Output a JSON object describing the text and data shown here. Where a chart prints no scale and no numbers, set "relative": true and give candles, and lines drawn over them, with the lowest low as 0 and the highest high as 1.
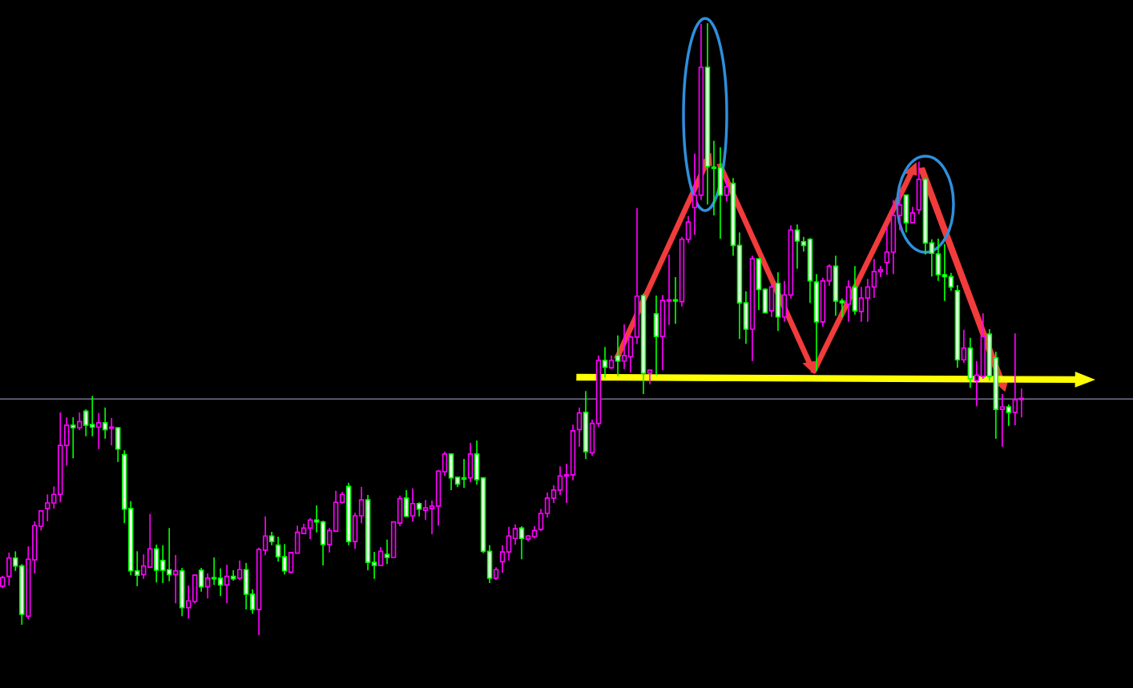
{
  "chart_data": {
    "type": "candlestick",
    "relative": true,
    "categories": [
      null,
      null,
      null,
      null,
      null,
      null,
      null,
      null,
      null,
      null,
      null,
      null,
      null,
      null,
      null,
      null,
      null,
      null,
      null,
      null,
      null,
      null,
      null,
      null,
      null,
      null,
      null,
      null,
      null,
      null,
      null,
      null,
      null,
      null,
      null,
      null,
      null,
      null,
      null,
      null,
      null,
      null,
      null,
      null,
      null,
      null,
      null,
      null,
      null,
      null,
      null,
      null,
      null,
      null,
      null,
      null,
      null,
      null,
      null,
      null,
      null,
      null,
      null,
      null,
      null,
      null,
      null,
      null,
      null,
      null,
      null,
      null,
      null,
      null,
      null,
      null,
      null,
      null,
      null,
      null,
      null,
      null,
      null,
      null,
      null,
      null,
      null,
      null,
      null,
      null,
      null,
      null,
      null,
      null,
      null,
      null,
      null,
      null,
      null,
      null,
      null,
      null,
      null,
      null,
      null,
      null,
      null,
      null,
      null,
      null,
      null,
      null,
      null,
      null,
      null,
      null,
      null,
      null,
      null,
      null,
      null,
      null,
      null,
      null,
      null,
      null,
      null,
      null,
      null,
      null,
      null,
      null,
      null,
      null,
      null,
      null,
      null,
      null,
      null,
      null,
      null,
      null,
      null,
      null,
      null,
      null,
      null,
      null,
      null,
      null,
      null,
      null,
      null,
      null,
      null,
      null,
      null,
      null,
      null,
      null
    ],
    "ohlc": [
      [
        0.08,
        0.097,
        0.077,
        0.094
      ],
      [
        0.096,
        0.135,
        0.081,
        0.126
      ],
      [
        0.126,
        0.137,
        0.105,
        0.113
      ],
      [
        0.113,
        0.116,
        0.017,
        0.034
      ],
      [
        0.031,
        0.145,
        0.026,
        0.124
      ],
      [
        0.123,
        0.186,
        0.101,
        0.179
      ],
      [
        0.178,
        0.203,
        0.171,
        0.203
      ],
      [
        0.207,
        0.23,
        0.186,
        0.216
      ],
      [
        0.216,
        0.243,
        0.207,
        0.23
      ],
      [
        0.23,
        0.364,
        0.217,
        0.31
      ],
      [
        0.31,
        0.356,
        0.277,
        0.343
      ],
      [
        0.343,
        0.356,
        0.289,
        0.339
      ],
      [
        0.339,
        0.364,
        0.335,
        0.349
      ],
      [
        0.366,
        0.369,
        0.325,
        0.343
      ],
      [
        0.344,
        0.391,
        0.325,
        0.34
      ],
      [
        0.34,
        0.363,
        0.304,
        0.347
      ],
      [
        0.347,
        0.372,
        0.321,
        0.336
      ],
      [
        0.338,
        0.355,
        0.31,
        0.339
      ],
      [
        0.339,
        0.339,
        0.283,
        0.304
      ],
      [
        0.295,
        0.302,
        0.183,
        0.206
      ],
      [
        0.207,
        0.219,
        0.098,
        0.105
      ],
      [
        0.105,
        0.137,
        0.08,
        0.098
      ],
      [
        0.099,
        0.132,
        0.092,
        0.113
      ],
      [
        0.111,
        0.198,
        0.11,
        0.141
      ],
      [
        0.141,
        0.148,
        0.086,
        0.106
      ],
      [
        0.122,
        0.147,
        0.085,
        0.106
      ],
      [
        0.107,
        0.175,
        0.088,
        0.099
      ],
      [
        0.099,
        0.131,
        0.052,
        0.105
      ],
      [
        0.105,
        0.11,
        0.031,
        0.045
      ],
      [
        0.045,
        0.081,
        0.027,
        0.056
      ],
      [
        0.055,
        0.099,
        0.052,
        0.098
      ],
      [
        0.106,
        0.11,
        0.071,
        0.079
      ],
      [
        0.079,
        0.101,
        0.06,
        0.093
      ],
      [
        0.093,
        0.127,
        0.082,
        0.092
      ],
      [
        0.093,
        0.109,
        0.064,
        0.082
      ],
      [
        0.082,
        0.115,
        0.052,
        0.096
      ],
      [
        0.096,
        0.106,
        0.089,
        0.092
      ],
      [
        0.093,
        0.122,
        0.09,
        0.107
      ],
      [
        0.107,
        0.118,
        0.042,
        0.067
      ],
      [
        0.067,
        0.075,
        0.035,
        0.042
      ],
      [
        0.042,
        0.143,
        0.0,
        0.14
      ],
      [
        0.139,
        0.194,
        0.131,
        0.162
      ],
      [
        0.162,
        0.169,
        0.147,
        0.153
      ],
      [
        0.147,
        0.161,
        0.12,
        0.128
      ],
      [
        0.128,
        0.149,
        0.099,
        0.105
      ],
      [
        0.103,
        0.135,
        0.101,
        0.135
      ],
      [
        0.134,
        0.179,
        0.134,
        0.168
      ],
      [
        0.166,
        0.182,
        0.165,
        0.175
      ],
      [
        0.175,
        0.191,
        0.157,
        0.188
      ],
      [
        0.188,
        0.212,
        0.168,
        0.185
      ],
      [
        0.185,
        0.187,
        0.114,
        0.148
      ],
      [
        0.148,
        0.175,
        0.135,
        0.171
      ],
      [
        0.17,
        0.236,
        0.17,
        0.217
      ],
      [
        0.217,
        0.234,
        0.215,
        0.23
      ],
      [
        0.243,
        0.249,
        0.147,
        0.153
      ],
      [
        0.153,
        0.2,
        0.141,
        0.195
      ],
      [
        0.195,
        0.242,
        0.183,
        0.221
      ],
      [
        0.221,
        0.229,
        0.106,
        0.119
      ],
      [
        0.119,
        0.136,
        0.092,
        0.114
      ],
      [
        0.114,
        0.144,
        0.114,
        0.137
      ],
      [
        0.132,
        0.156,
        0.116,
        0.127
      ],
      [
        0.127,
        0.186,
        0.127,
        0.185
      ],
      [
        0.183,
        0.228,
        0.178,
        0.223
      ],
      [
        0.224,
        0.237,
        0.194,
        0.194
      ],
      [
        0.195,
        0.24,
        0.186,
        0.215
      ],
      [
        0.215,
        0.217,
        0.194,
        0.206
      ],
      [
        0.204,
        0.221,
        0.188,
        0.208
      ],
      [
        0.207,
        0.22,
        0.165,
        0.211
      ],
      [
        0.211,
        0.27,
        0.179,
        0.268
      ],
      [
        0.267,
        0.3,
        0.26,
        0.296
      ],
      [
        0.296,
        0.296,
        0.237,
        0.257
      ],
      [
        0.258,
        0.259,
        0.242,
        0.247
      ],
      [
        0.257,
        0.288,
        0.241,
        0.255
      ],
      [
        0.257,
        0.314,
        0.25,
        0.296
      ],
      [
        0.296,
        0.318,
        0.246,
        0.254
      ],
      [
        0.257,
        0.257,
        0.134,
        0.137
      ],
      [
        0.137,
        0.147,
        0.085,
        0.093
      ],
      [
        0.093,
        0.111,
        0.09,
        0.107
      ],
      [
        0.12,
        0.147,
        0.102,
        0.136
      ],
      [
        0.136,
        0.177,
        0.122,
        0.162
      ],
      [
        0.158,
        0.181,
        0.148,
        0.174
      ],
      [
        0.175,
        0.178,
        0.124,
        0.158
      ],
      [
        0.157,
        0.164,
        0.153,
        0.162
      ],
      [
        0.161,
        0.178,
        0.158,
        0.171
      ],
      [
        0.173,
        0.206,
        0.17,
        0.199
      ],
      [
        0.199,
        0.233,
        0.192,
        0.224
      ],
      [
        0.224,
        0.245,
        0.216,
        0.237
      ],
      [
        0.237,
        0.276,
        0.229,
        0.26
      ],
      [
        0.26,
        0.28,
        0.216,
        0.262
      ],
      [
        0.262,
        0.344,
        0.253,
        0.334
      ],
      [
        0.336,
        0.372,
        0.308,
        0.363
      ],
      [
        0.364,
        0.399,
        0.288,
        0.3
      ],
      [
        0.298,
        0.352,
        0.293,
        0.346
      ],
      [
        0.346,
        0.457,
        0.34,
        0.449
      ],
      [
        0.449,
        0.471,
        0.421,
        0.438
      ],
      [
        0.437,
        0.457,
        0.435,
        0.449
      ],
      [
        0.457,
        0.49,
        0.423,
        0.448
      ],
      [
        0.448,
        0.508,
        0.435,
        0.457
      ],
      [
        0.455,
        0.49,
        0.429,
        0.487
      ],
      [
        0.487,
        0.698,
        0.476,
        0.554
      ],
      [
        0.555,
        0.558,
        0.394,
        0.428
      ],
      [
        0.428,
        0.433,
        0.41,
        0.433
      ],
      [
        0.525,
        0.555,
        0.425,
        0.488
      ],
      [
        0.488,
        0.556,
        0.433,
        0.547
      ],
      [
        0.546,
        0.622,
        0.507,
        0.547
      ],
      [
        0.548,
        0.585,
        0.509,
        0.546
      ],
      [
        0.545,
        0.651,
        0.537,
        0.647
      ],
      [
        0.647,
        0.685,
        0.641,
        0.675
      ],
      [
        0.699,
        0.787,
        0.654,
        0.719
      ],
      [
        0.719,
        0.999,
        0.711,
        0.928
      ],
      [
        0.928,
        1.0,
        0.704,
        0.766
      ],
      [
        0.764,
        0.808,
        0.686,
        0.763
      ],
      [
        0.764,
        0.797,
        0.648,
        0.719
      ],
      [
        0.719,
        0.747,
        0.709,
        0.733
      ],
      [
        0.738,
        0.747,
        0.62,
        0.637
      ],
      [
        0.637,
        0.658,
        0.484,
        0.543
      ],
      [
        0.543,
        0.562,
        0.476,
        0.5
      ],
      [
        0.5,
        0.62,
        0.448,
        0.615
      ],
      [
        0.615,
        0.615,
        0.531,
        0.565
      ],
      [
        0.565,
        0.567,
        0.526,
        0.527
      ],
      [
        0.53,
        0.573,
        0.52,
        0.569
      ],
      [
        0.575,
        0.593,
        0.497,
        0.52
      ],
      [
        0.52,
        0.579,
        0.512,
        0.556
      ],
      [
        0.556,
        0.67,
        0.55,
        0.662
      ],
      [
        0.662,
        0.671,
        0.599,
        0.644
      ],
      [
        0.643,
        0.651,
        0.627,
        0.637
      ],
      [
        0.647,
        0.649,
        0.543,
        0.579
      ],
      [
        0.577,
        0.59,
        0.432,
        0.512
      ],
      [
        0.512,
        0.584,
        0.504,
        0.579
      ],
      [
        0.579,
        0.606,
        0.571,
        0.603
      ],
      [
        0.603,
        0.62,
        0.522,
        0.546
      ],
      [
        0.546,
        0.55,
        0.52,
        0.543
      ],
      [
        0.541,
        0.58,
        0.512,
        0.569
      ],
      [
        0.569,
        0.603,
        0.524,
        0.53
      ],
      [
        0.529,
        0.569,
        0.512,
        0.551
      ],
      [
        0.551,
        0.582,
        0.512,
        0.569
      ],
      [
        0.569,
        0.615,
        0.551,
        0.594
      ],
      [
        0.594,
        0.603,
        0.585,
        0.597
      ],
      [
        0.609,
        0.668,
        0.589,
        0.626
      ],
      [
        0.626,
        0.711,
        0.59,
        0.686
      ],
      [
        0.686,
        0.724,
        0.662,
        0.703
      ],
      [
        0.719,
        0.72,
        0.658,
        0.674
      ],
      [
        0.674,
        0.7,
        0.673,
        0.69
      ],
      [
        0.695,
        0.774,
        0.688,
        0.745
      ],
      [
        0.745,
        0.747,
        0.622,
        0.641
      ],
      [
        0.641,
        0.647,
        0.586,
        0.624
      ],
      [
        0.623,
        0.648,
        0.579,
        0.589
      ],
      [
        0.589,
        0.639,
        0.546,
        0.586
      ],
      [
        0.586,
        0.592,
        0.563,
        0.569
      ],
      [
        0.563,
        0.572,
        0.437,
        0.45
      ],
      [
        0.45,
        0.499,
        0.445,
        0.469
      ],
      [
        0.469,
        0.486,
        0.404,
        0.419
      ],
      [
        0.416,
        0.448,
        0.374,
        0.425
      ],
      [
        0.423,
        0.526,
        0.419,
        0.488
      ],
      [
        0.492,
        0.5,
        0.416,
        0.423
      ],
      [
        0.453,
        0.463,
        0.321,
        0.369
      ],
      [
        0.369,
        0.394,
        0.308,
        0.373
      ],
      [
        0.373,
        0.377,
        0.342,
        0.364
      ],
      [
        0.364,
        0.493,
        0.343,
        0.385
      ],
      [
        0.385,
        0.403,
        0.356,
        0.385
      ]
    ],
    "colors": [
      "#ff00ff",
      "#ff00ff",
      "#00ff00",
      "#00ff00",
      "#ff00ff",
      "#ff00ff",
      "#ff00ff",
      "#ff00ff",
      "#ff00ff",
      "#ff00ff",
      "#ff00ff",
      "#00ff00",
      "#ff00ff",
      "#00ff00",
      "#00ff00",
      "#ff00ff",
      "#00ff00",
      "#ff00ff",
      "#00ff00",
      "#00ff00",
      "#00ff00",
      "#00ff00",
      "#ff00ff",
      "#ff00ff",
      "#00ff00",
      "#00ff00",
      "#00ff00",
      "#ff00ff",
      "#00ff00",
      "#ff00ff",
      "#ff00ff",
      "#00ff00",
      "#ff00ff",
      "#00ff00",
      "#00ff00",
      "#ff00ff",
      "#00ff00",
      "#ff00ff",
      "#00ff00",
      "#00ff00",
      "#ff00ff",
      "#ff00ff",
      "#00ff00",
      "#00ff00",
      "#00ff00",
      "#ff00ff",
      "#ff00ff",
      "#ff00ff",
      "#ff00ff",
      "#00ff00",
      "#00ff00",
      "#ff00ff",
      "#ff00ff",
      "#ff00ff",
      "#00ff00",
      "#ff00ff",
      "#ff00ff",
      "#00ff00",
      "#00ff00",
      "#ff00ff",
      "#00ff00",
      "#ff00ff",
      "#ff00ff",
      "#00ff00",
      "#ff00ff",
      "#00ff00",
      "#ff00ff",
      "#ff00ff",
      "#ff00ff",
      "#ff00ff",
      "#00ff00",
      "#00ff00",
      "#00ff00",
      "#ff00ff",
      "#00ff00",
      "#00ff00",
      "#00ff00",
      "#ff00ff",
      "#ff00ff",
      "#ff00ff",
      "#ff00ff",
      "#00ff00",
      "#ff00ff",
      "#ff00ff",
      "#ff00ff",
      "#ff00ff",
      "#ff00ff",
      "#ff00ff",
      "#ff00ff",
      "#ff00ff",
      "#ff00ff",
      "#00ff00",
      "#ff00ff",
      "#ff00ff",
      "#00ff00",
      "#ff00ff",
      "#00ff00",
      "#ff00ff",
      "#ff00ff",
      "#ff00ff",
      "#00ff00",
      "#ff00ff",
      "#00ff00",
      "#ff00ff",
      "#ff00ff",
      "#00ff00",
      "#ff00ff",
      "#ff00ff",
      "#ff00ff",
      "#ff00ff",
      "#00ff00",
      "#00ff00",
      "#00ff00",
      "#ff00ff",
      "#00ff00",
      "#00ff00",
      "#00ff00",
      "#ff00ff",
      "#00ff00",
      "#00ff00",
      "#ff00ff",
      "#00ff00",
      "#ff00ff",
      "#ff00ff",
      "#00ff00",
      "#00ff00",
      "#00ff00",
      "#00ff00",
      "#ff00ff",
      "#ff00ff",
      "#00ff00",
      "#00ff00",
      "#ff00ff",
      "#00ff00",
      "#ff00ff",
      "#ff00ff",
      "#ff00ff",
      "#ff00ff",
      "#ff00ff",
      "#ff00ff",
      "#ff00ff",
      "#00ff00",
      "#ff00ff",
      "#ff00ff",
      "#00ff00",
      "#00ff00",
      "#00ff00",
      "#00ff00",
      "#00ff00",
      "#00ff00",
      "#ff00ff",
      "#00ff00",
      "#ff00ff",
      "#ff00ff",
      "#00ff00",
      "#00ff00",
      "#ff00ff",
      "#00ff00",
      "#ff00ff",
      "#ff00ff"
    ],
    "ref_lines": [
      {
        "axis": "y",
        "value": 0.386,
        "color": "#8c8cae"
      }
    ]
  }
}
